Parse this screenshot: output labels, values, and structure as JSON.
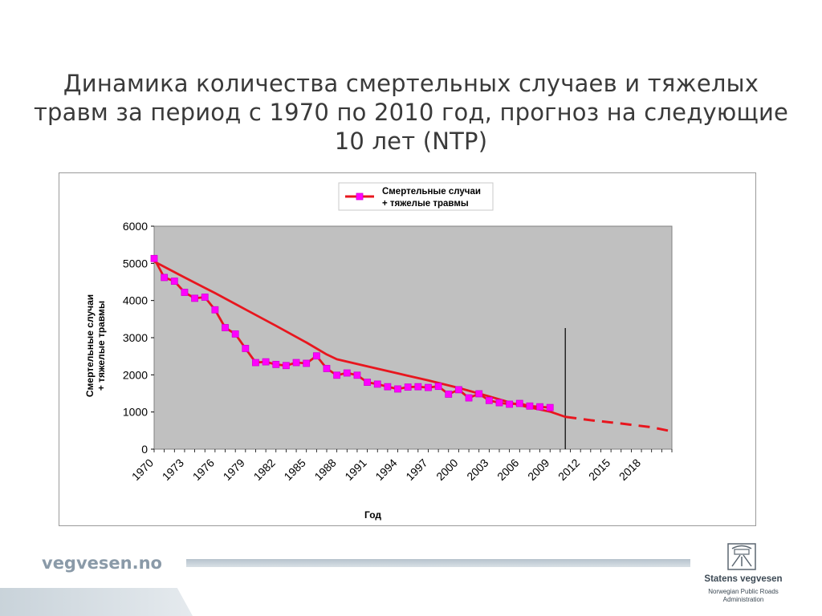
{
  "slide": {
    "title_lines": [
      "Динамика количества смертельных случаев и тяжелых",
      "травм за период с 1970 по 2010 год, прогноз на следующие",
      "10 лет (NTP)"
    ]
  },
  "footer": {
    "site": "vegvesen.no",
    "org_name": "Statens vegvesen",
    "org_sub_lines": [
      "Norwegian Public Roads",
      "Administration"
    ]
  },
  "colors": {
    "plot_bg": "#c0c0c0",
    "series_line": "#e8161e",
    "marker": "#ff00ff",
    "marker_edge": "#d400d4",
    "text": "#000000"
  },
  "chart_data": {
    "type": "line",
    "xlabel": "Год",
    "ylabel_lines": [
      "Смертельные случаи",
      "+ тяжелые травмы"
    ],
    "ylim": [
      0,
      6000
    ],
    "yticks": [
      0,
      1000,
      2000,
      3000,
      4000,
      5000,
      6000
    ],
    "xlim": [
      1970,
      2021
    ],
    "xticks": [
      1970,
      1973,
      1976,
      1979,
      1982,
      1985,
      1988,
      1991,
      1994,
      1997,
      2000,
      2003,
      2006,
      2009,
      2012,
      2015,
      2018
    ],
    "grid": false,
    "legend_position": "top-center",
    "vertical_marker_year": 2010.5,
    "series": [
      {
        "name": "Смертельные случаи + тяжелые травмы",
        "style": "line-with-markers",
        "x": [
          1970,
          1971,
          1972,
          1973,
          1974,
          1975,
          1976,
          1977,
          1978,
          1979,
          1980,
          1981,
          1982,
          1983,
          1984,
          1985,
          1986,
          1987,
          1988,
          1989,
          1990,
          1991,
          1992,
          1993,
          1994,
          1995,
          1996,
          1997,
          1998,
          1999,
          2000,
          2001,
          2002,
          2003,
          2004,
          2005,
          2006,
          2007,
          2008,
          2009
        ],
        "y": [
          5130,
          4620,
          4520,
          4220,
          4060,
          4090,
          3750,
          3270,
          3100,
          2710,
          2330,
          2350,
          2280,
          2250,
          2330,
          2310,
          2510,
          2170,
          1990,
          2050,
          1990,
          1800,
          1750,
          1680,
          1620,
          1670,
          1680,
          1660,
          1690,
          1480,
          1600,
          1380,
          1490,
          1310,
          1250,
          1210,
          1230,
          1160,
          1140,
          1120
        ]
      },
      {
        "style": "trend-line",
        "x": [
          1970,
          1973,
          1976,
          1979,
          1982,
          1985,
          1987,
          1988,
          1991,
          1994,
          1997,
          2000,
          2003,
          2006,
          2009,
          2010.5
        ],
        "y": [
          5050,
          4620,
          4200,
          3760,
          3320,
          2870,
          2550,
          2420,
          2230,
          2040,
          1850,
          1650,
          1420,
          1180,
          1010,
          870
        ]
      },
      {
        "style": "forecast-dashed",
        "x": [
          2010.5,
          2013,
          2016,
          2019,
          2021
        ],
        "y": [
          870,
          780,
          690,
          590,
          480
        ]
      }
    ]
  }
}
